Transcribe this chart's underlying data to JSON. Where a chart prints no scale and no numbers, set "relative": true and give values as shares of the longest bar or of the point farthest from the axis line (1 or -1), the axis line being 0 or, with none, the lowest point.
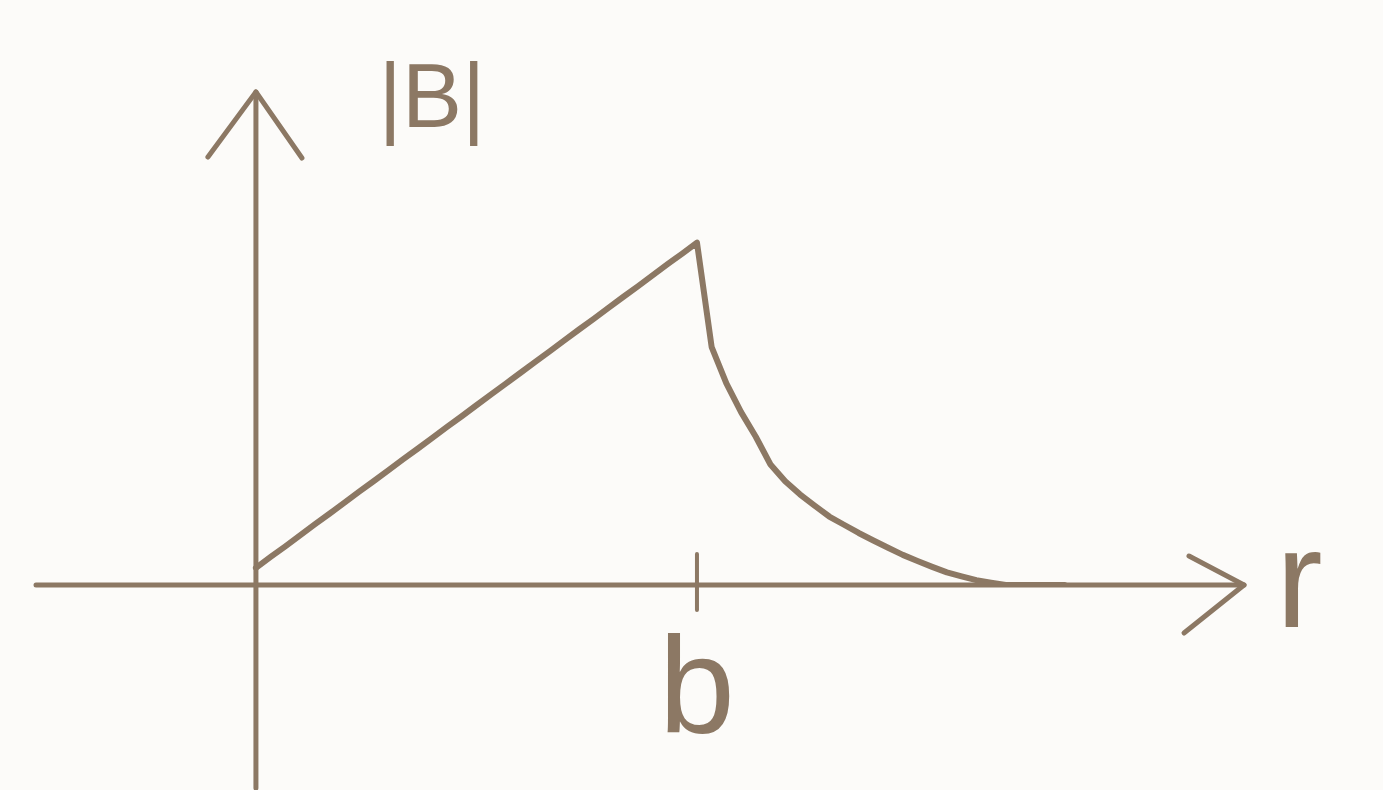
{
  "chart_data": {
    "type": "line",
    "relative": true,
    "xlabel": "r",
    "ylabel": "|B|",
    "annotations": [
      "b"
    ],
    "categories": [
      null,
      null,
      null,
      null,
      null,
      null,
      null,
      null,
      null,
      null,
      null,
      null,
      null,
      null,
      null,
      null,
      null,
      null,
      null,
      null,
      null,
      null,
      null,
      null,
      null,
      null,
      null,
      null,
      null,
      null,
      null,
      null,
      null,
      null,
      null,
      null,
      null,
      null,
      null,
      null,
      null,
      null,
      null,
      null,
      null,
      null,
      null,
      null,
      null,
      null,
      null,
      null,
      null,
      null,
      null,
      null
    ],
    "series": [
      {
        "color": "#8c7864",
        "values": [
          0.05,
          0.082,
          0.113,
          0.145,
          0.177,
          0.208,
          0.24,
          0.272,
          0.303,
          0.335,
          0.367,
          0.398,
          0.43,
          0.462,
          0.493,
          0.525,
          0.557,
          0.588,
          0.62,
          0.652,
          0.683,
          0.715,
          0.747,
          0.778,
          0.81,
          0.842,
          0.873,
          0.905,
          0.937,
          0.968,
          1,
          0.695,
          0.589,
          0.505,
          0.433,
          0.352,
          0.303,
          0.265,
          0.232,
          0.2,
          0.176,
          0.152,
          0.13,
          0.109,
          0.088,
          0.07,
          0.053,
          0.037,
          0.025,
          0.014,
          0.007,
          0,
          0,
          0,
          0,
          0
        ]
      }
    ]
  }
}
